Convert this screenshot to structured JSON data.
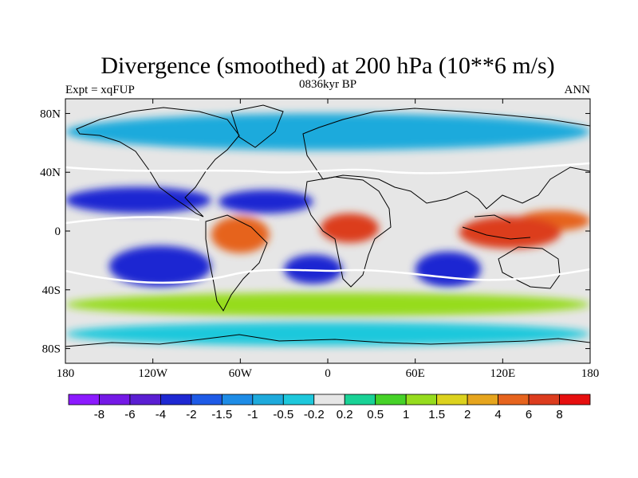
{
  "chart_data": {
    "type": "heatmap",
    "title": "Divergence (smoothed) at 200 hPa (10**6 m/s)",
    "subtitle_left": "Expt = xqFUP",
    "subtitle_center": "0836kyr BP",
    "subtitle_right": "ANN",
    "projection": "cylindrical equidistant",
    "xlim": [
      -180,
      180
    ],
    "ylim": [
      -90,
      90
    ],
    "x_ticks": [
      {
        "value": -180,
        "label": "180"
      },
      {
        "value": -120,
        "label": "120W"
      },
      {
        "value": -60,
        "label": "60W"
      },
      {
        "value": 0,
        "label": "0"
      },
      {
        "value": 60,
        "label": "60E"
      },
      {
        "value": 120,
        "label": "120E"
      },
      {
        "value": 180,
        "label": "180"
      }
    ],
    "y_ticks": [
      {
        "value": 80,
        "label": "80N"
      },
      {
        "value": 40,
        "label": "40N"
      },
      {
        "value": 0,
        "label": "0"
      },
      {
        "value": -40,
        "label": "40S"
      },
      {
        "value": -80,
        "label": "80S"
      }
    ],
    "colorbar": {
      "levels": [
        "-8",
        "-6",
        "-4",
        "-2",
        "-1.5",
        "-1",
        "-0.5",
        "-0.2",
        "0.2",
        "0.5",
        "1",
        "1.5",
        "2",
        "4",
        "6",
        "8"
      ],
      "colors": [
        "#8c1aff",
        "#7419e6",
        "#5a1ed2",
        "#1e28d2",
        "#1e5ae6",
        "#1e8ce6",
        "#1eaadc",
        "#1ec8dc",
        "#e6e6e6",
        "#19d296",
        "#46d228",
        "#96dc1e",
        "#dcd21e",
        "#e6a51e",
        "#e6641e",
        "#dc3c1e",
        "#e60f0f"
      ]
    },
    "regions": [
      {
        "name": "Tropical eastern Pacific convergence band",
        "lon": [
          -180,
          -80
        ],
        "lat": [
          12,
          30
        ],
        "value": -3
      },
      {
        "name": "Tropical Atlantic convergence band",
        "lon": [
          -75,
          -10
        ],
        "lat": [
          12,
          28
        ],
        "value": -3
      },
      {
        "name": "Southeast Pacific convergence",
        "lon": [
          -150,
          -80
        ],
        "lat": [
          -38,
          -10
        ],
        "value": -3
      },
      {
        "name": "South Atlantic convergence",
        "lon": [
          -30,
          10
        ],
        "lat": [
          -36,
          -16
        ],
        "value": -3
      },
      {
        "name": "South Indian Ocean convergence",
        "lon": [
          60,
          105
        ],
        "lat": [
          -38,
          -14
        ],
        "value": -3
      },
      {
        "name": "South America divergence",
        "lon": [
          -80,
          -40
        ],
        "lat": [
          -15,
          10
        ],
        "value": 4
      },
      {
        "name": "Central Africa divergence",
        "lon": [
          -5,
          35
        ],
        "lat": [
          -8,
          12
        ],
        "value": 6
      },
      {
        "name": "Maritime Continent divergence",
        "lon": [
          90,
          160
        ],
        "lat": [
          -12,
          10
        ],
        "value": 6
      },
      {
        "name": "Western Pacific ITCZ divergence",
        "lon": [
          130,
          180
        ],
        "lat": [
          0,
          14
        ],
        "value": 4
      },
      {
        "name": "Arctic / North Pacific weak convergence",
        "lon": [
          -180,
          180
        ],
        "lat": [
          55,
          80
        ],
        "value": -1
      },
      {
        "name": "Antarctic weak convergence",
        "lon": [
          -180,
          180
        ],
        "lat": [
          -78,
          -62
        ],
        "value": -0.5
      },
      {
        "name": "Southern midlatitude weak divergence",
        "lon": [
          -180,
          180
        ],
        "lat": [
          -58,
          -42
        ],
        "value": 1
      }
    ]
  }
}
